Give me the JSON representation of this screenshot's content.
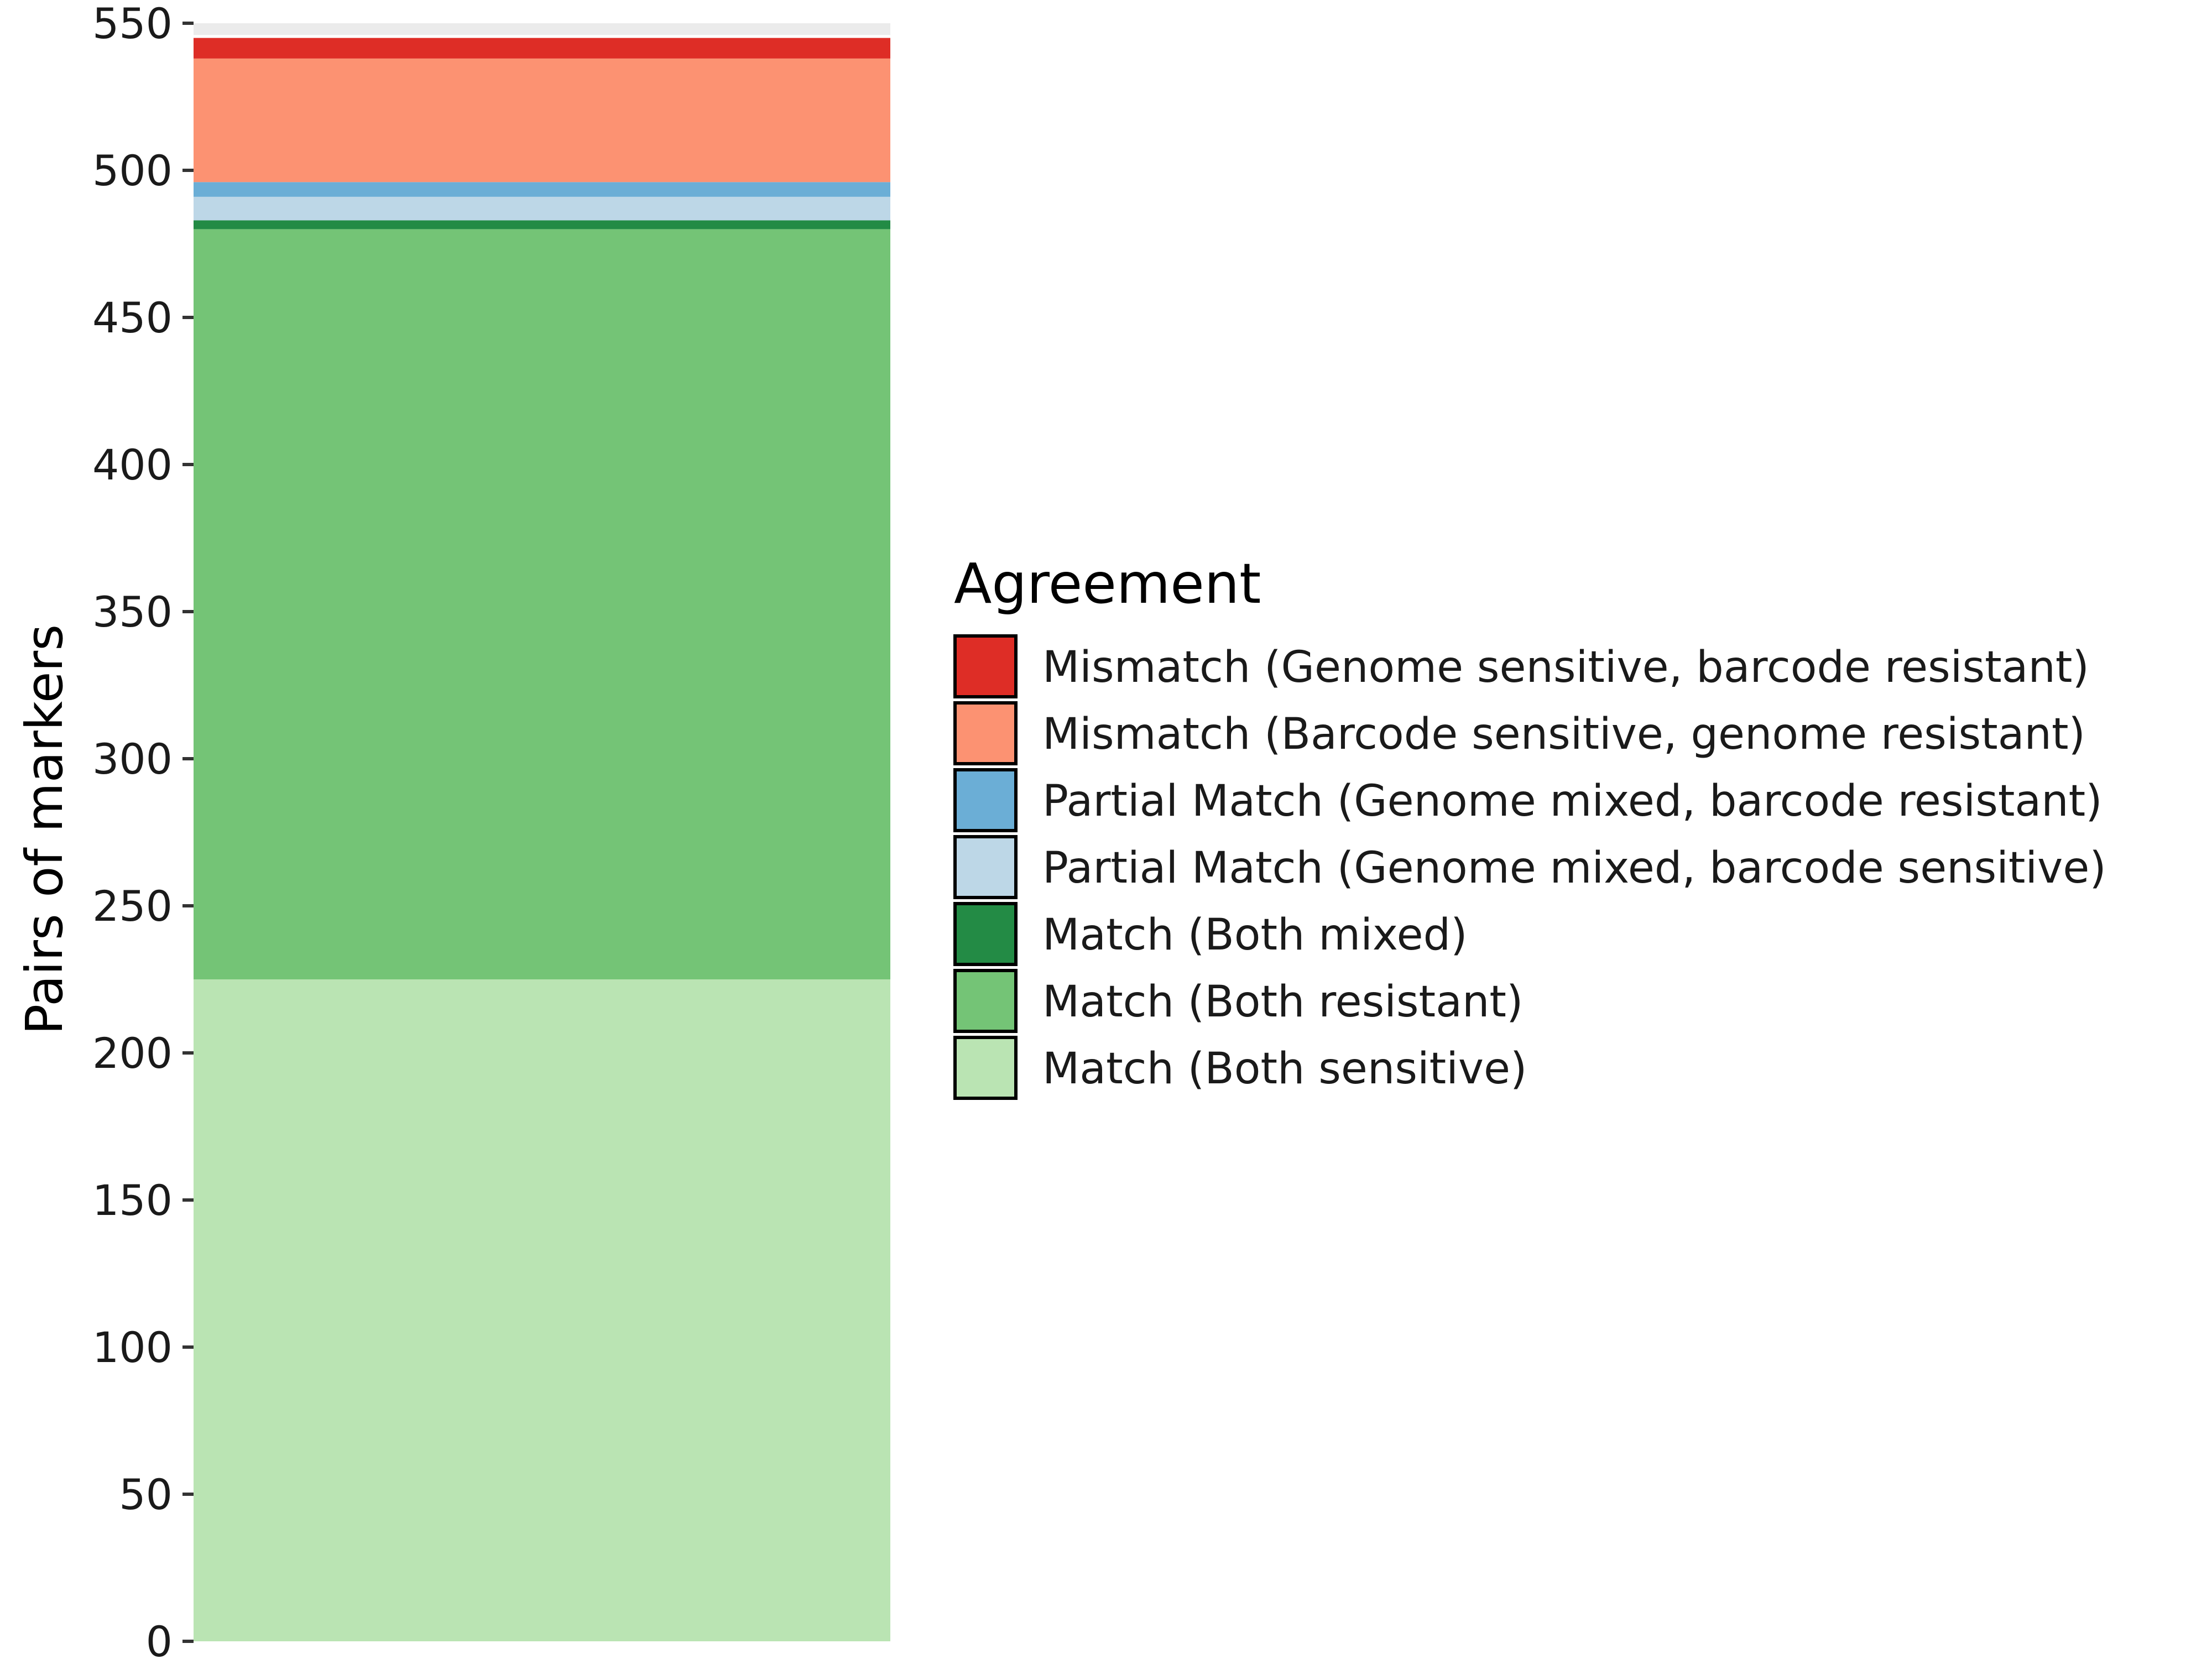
{
  "chart_data": {
    "type": "bar",
    "stacked": true,
    "title": "",
    "xlabel": "",
    "ylabel": "Pairs of markers",
    "ylim": [
      0,
      550
    ],
    "yticks": [
      0,
      50,
      100,
      150,
      200,
      250,
      300,
      350,
      400,
      450,
      500,
      550
    ],
    "grid": false,
    "legend_placement": "right",
    "legend_title": "Agreement",
    "total": 546,
    "series": [
      {
        "name": "Match (Both sensitive)",
        "value": 225,
        "color": "#bae4b3"
      },
      {
        "name": "Match (Both resistant)",
        "value": 255,
        "color": "#74c476"
      },
      {
        "name": "Match (Both mixed)",
        "value": 3,
        "color": "#238b45"
      },
      {
        "name": "Partial Match (Genome mixed, barcode sensitive)",
        "value": 8,
        "color": "#bdd7e7"
      },
      {
        "name": "Partial Match (Genome mixed, barcode resistant)",
        "value": 5,
        "color": "#6baed6"
      },
      {
        "name": "Mismatch (Barcode sensitive, genome resistant)",
        "value": 42,
        "color": "#fc9272"
      },
      {
        "name": "Mismatch (Genome sensitive, barcode resistant)",
        "value": 7,
        "color": "#de2d26"
      }
    ]
  }
}
